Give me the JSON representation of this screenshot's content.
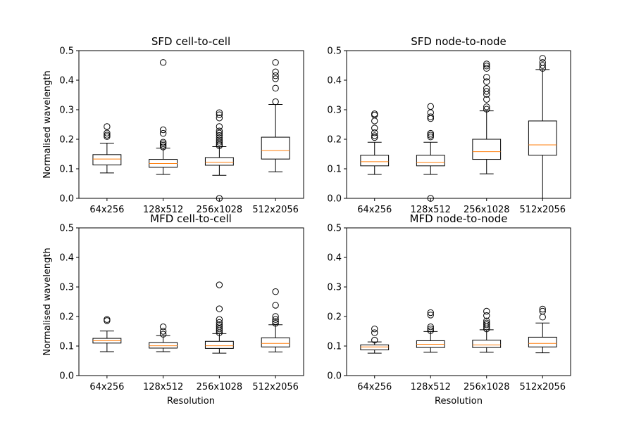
{
  "chart_data": [
    {
      "type": "box",
      "title": "SFD cell-to-cell",
      "ylabel": "Normalised wavelength",
      "xlabel": "",
      "ylim": [
        0,
        0.5
      ],
      "yticks": [
        "0.0",
        "0.1",
        "0.2",
        "0.3",
        "0.4",
        "0.5"
      ],
      "categories": [
        "64x256",
        "128x512",
        "256x1028",
        "512x2056"
      ],
      "boxes": [
        {
          "q1": 0.113,
          "median": 0.133,
          "q3": 0.148,
          "whislo": 0.086,
          "whishi": 0.187,
          "fliers": [
            0.209,
            0.214,
            0.221,
            0.243
          ]
        },
        {
          "q1": 0.105,
          "median": 0.118,
          "q3": 0.132,
          "whislo": 0.081,
          "whishi": 0.17,
          "fliers": [
            0.174,
            0.18,
            0.185,
            0.19,
            0.22,
            0.232,
            0.46
          ]
        },
        {
          "q1": 0.112,
          "median": 0.122,
          "q3": 0.138,
          "whislo": 0.078,
          "whishi": 0.175,
          "fliers": [
            0.0,
            0.178,
            0.183,
            0.19,
            0.197,
            0.205,
            0.213,
            0.221,
            0.228,
            0.243,
            0.272,
            0.283,
            0.29
          ]
        },
        {
          "q1": 0.133,
          "median": 0.162,
          "q3": 0.207,
          "whislo": 0.09,
          "whishi": 0.318,
          "fliers": [
            0.327,
            0.373,
            0.405,
            0.415,
            0.428,
            0.46
          ]
        }
      ]
    },
    {
      "type": "box",
      "title": "SFD node-to-node",
      "ylabel": "",
      "xlabel": "",
      "ylim": [
        0,
        0.5
      ],
      "yticks": [
        "0.0",
        "0.1",
        "0.2",
        "0.3",
        "0.4",
        "0.5"
      ],
      "categories": [
        "64x256",
        "128x512",
        "256x1028",
        "512x2056"
      ],
      "boxes": [
        {
          "q1": 0.11,
          "median": 0.124,
          "q3": 0.146,
          "whislo": 0.081,
          "whishi": 0.19,
          "fliers": [
            0.206,
            0.212,
            0.222,
            0.238,
            0.262,
            0.282,
            0.286
          ]
        },
        {
          "q1": 0.11,
          "median": 0.121,
          "q3": 0.146,
          "whislo": 0.081,
          "whishi": 0.19,
          "fliers": [
            0.0,
            0.208,
            0.214,
            0.22,
            0.27,
            0.276,
            0.29,
            0.311
          ]
        },
        {
          "q1": 0.132,
          "median": 0.158,
          "q3": 0.2,
          "whislo": 0.083,
          "whishi": 0.296,
          "fliers": [
            0.302,
            0.31,
            0.335,
            0.352,
            0.362,
            0.372,
            0.395,
            0.41,
            0.44,
            0.448,
            0.455
          ]
        },
        {
          "q1": 0.146,
          "median": 0.181,
          "q3": 0.262,
          "whislo": 0.0,
          "whishi": 0.436,
          "fliers": [
            0.44,
            0.45,
            0.46,
            0.474
          ]
        }
      ]
    },
    {
      "type": "box",
      "title": "MFD cell-to-cell",
      "ylabel": "Normalised wavelength",
      "xlabel": "Resolution",
      "ylim": [
        0,
        0.5
      ],
      "yticks": [
        "0.0",
        "0.1",
        "0.2",
        "0.3",
        "0.4",
        "0.5"
      ],
      "categories": [
        "64x256",
        "128x512",
        "256x1028",
        "512x2056"
      ],
      "boxes": [
        {
          "q1": 0.11,
          "median": 0.118,
          "q3": 0.126,
          "whislo": 0.081,
          "whishi": 0.151,
          "fliers": [
            0.186,
            0.19
          ]
        },
        {
          "q1": 0.093,
          "median": 0.101,
          "q3": 0.112,
          "whislo": 0.081,
          "whishi": 0.135,
          "fliers": [
            0.14,
            0.15,
            0.165
          ]
        },
        {
          "q1": 0.092,
          "median": 0.101,
          "q3": 0.116,
          "whislo": 0.076,
          "whishi": 0.142,
          "fliers": [
            0.145,
            0.152,
            0.158,
            0.165,
            0.172,
            0.18,
            0.19,
            0.226,
            0.307
          ]
        },
        {
          "q1": 0.097,
          "median": 0.109,
          "q3": 0.128,
          "whislo": 0.08,
          "whishi": 0.172,
          "fliers": [
            0.177,
            0.183,
            0.19,
            0.2,
            0.238,
            0.284
          ]
        }
      ]
    },
    {
      "type": "box",
      "title": "MFD node-to-node",
      "ylabel": "",
      "xlabel": "Resolution",
      "ylim": [
        0,
        0.5
      ],
      "yticks": [
        "0.0",
        "0.1",
        "0.2",
        "0.3",
        "0.4",
        "0.5"
      ],
      "categories": [
        "64x256",
        "128x512",
        "256x1028",
        "512x2056"
      ],
      "boxes": [
        {
          "q1": 0.087,
          "median": 0.097,
          "q3": 0.104,
          "whislo": 0.076,
          "whishi": 0.114,
          "fliers": [
            0.12,
            0.145,
            0.158
          ]
        },
        {
          "q1": 0.095,
          "median": 0.106,
          "q3": 0.118,
          "whislo": 0.079,
          "whishi": 0.149,
          "fliers": [
            0.152,
            0.158,
            0.165,
            0.205,
            0.213
          ]
        },
        {
          "q1": 0.095,
          "median": 0.104,
          "q3": 0.12,
          "whislo": 0.079,
          "whishi": 0.155,
          "fliers": [
            0.158,
            0.165,
            0.172,
            0.178,
            0.185,
            0.203,
            0.218
          ]
        },
        {
          "q1": 0.097,
          "median": 0.109,
          "q3": 0.13,
          "whislo": 0.077,
          "whishi": 0.178,
          "fliers": [
            0.198,
            0.218,
            0.225
          ]
        }
      ]
    }
  ],
  "colors": {
    "median": "#ff7f0e",
    "box": "#000000",
    "background": "#ffffff"
  }
}
